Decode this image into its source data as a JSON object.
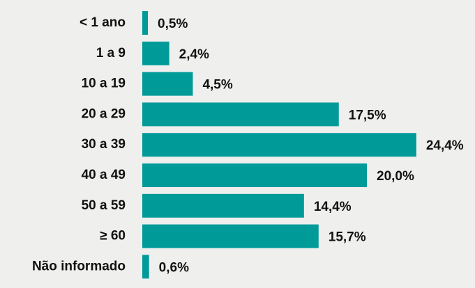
{
  "chart_data": {
    "type": "bar",
    "orientation": "horizontal",
    "categories": [
      "< 1 ano",
      "1 a 9",
      "10 a 19",
      "20 a 29",
      "30 a 39",
      "40 a 49",
      "50 a 59",
      "≥ 60",
      "Não informado"
    ],
    "values": [
      0.5,
      2.4,
      4.5,
      17.5,
      24.4,
      20.0,
      14.4,
      15.7,
      0.6
    ],
    "value_labels": [
      "0,5%",
      "2,4%",
      "4,5%",
      "17,5%",
      "24,4%",
      "20,0%",
      "14,4%",
      "15,7%",
      "0,6%"
    ],
    "color": "#009a99"
  }
}
